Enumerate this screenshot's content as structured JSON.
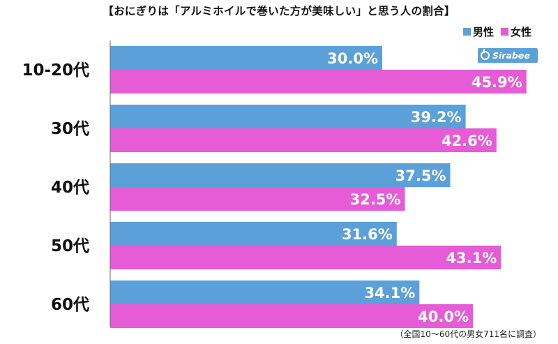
{
  "header": {
    "title": "【おにぎりは「アルミホイルで巻いた方が美味しい」と思う人の割合】",
    "brand": "Sirabee",
    "footnote": "（全国10〜60代の男女711名に調査）"
  },
  "colors": {
    "male": "#5ba0d8",
    "female": "#e65cd6"
  },
  "chart_data": {
    "type": "bar",
    "orientation": "horizontal",
    "categories": [
      "10-20代",
      "30代",
      "40代",
      "50代",
      "60代"
    ],
    "series": [
      {
        "name": "男性",
        "values": [
          30.0,
          39.2,
          37.5,
          31.6,
          34.1
        ]
      },
      {
        "name": "女性",
        "values": [
          45.9,
          42.6,
          32.5,
          43.1,
          40.0
        ]
      }
    ],
    "value_format": "percent_1dp",
    "xlim": [
      0,
      100
    ],
    "legend": "top-right",
    "grid": false
  }
}
